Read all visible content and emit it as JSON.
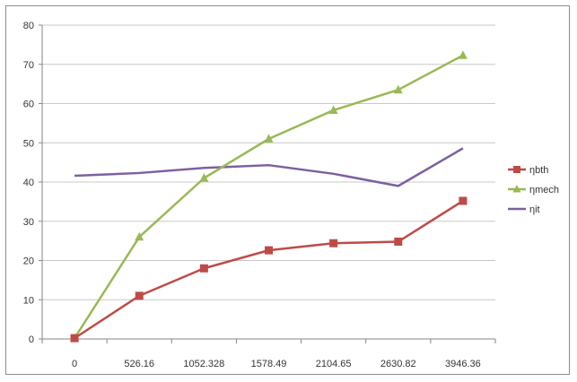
{
  "chart_data": {
    "type": "line",
    "categories": [
      "0",
      "526.16",
      "1052.328",
      "1578.49",
      "2104.65",
      "2630.82",
      "3946.36"
    ],
    "ylim": [
      0,
      80
    ],
    "y_ticks": [
      "0",
      "10",
      "20",
      "30",
      "40",
      "50",
      "60",
      "70",
      "80"
    ],
    "grid": true,
    "legend_position": "right",
    "series": [
      {
        "name": "ηbth",
        "color": "#be4b48",
        "marker": "square",
        "values": [
          0.2,
          11,
          18,
          22.6,
          24.4,
          24.8,
          35.2
        ]
      },
      {
        "name": "ηmech",
        "color": "#98b954",
        "marker": "triangle",
        "values": [
          0.2,
          26,
          41,
          51,
          58.3,
          63.5,
          72.3
        ]
      },
      {
        "name": "ηit",
        "color": "#7d60a0",
        "marker": "none",
        "values": [
          41.6,
          42.3,
          43.6,
          44.3,
          42.1,
          39,
          48.6
        ]
      }
    ]
  }
}
